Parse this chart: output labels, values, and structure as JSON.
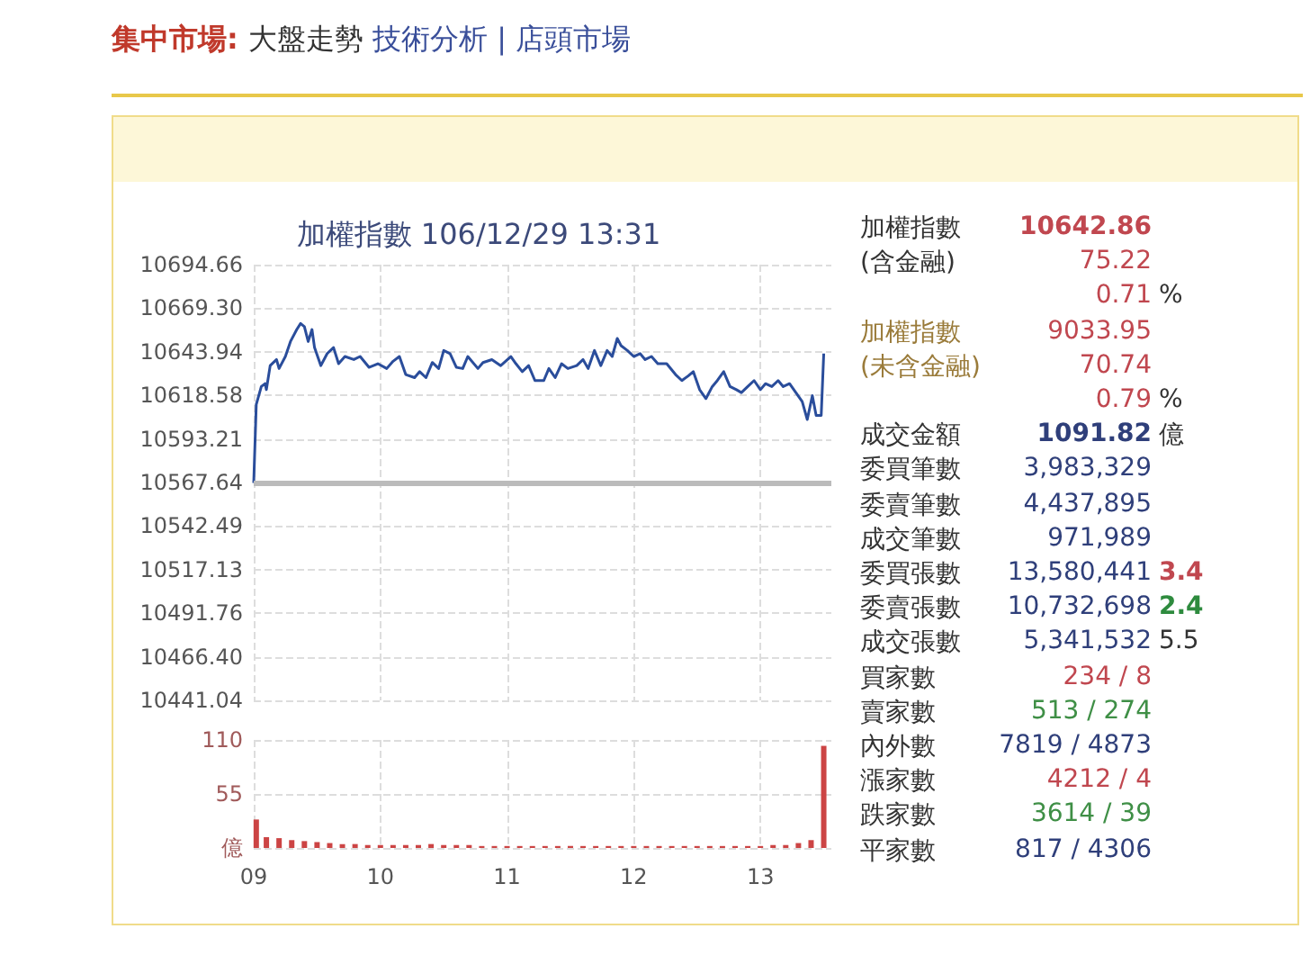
{
  "chart_data": [
    {
      "type": "line",
      "title": "加權指數 106/12/29 13:31",
      "x": [
        9.0,
        9.02,
        9.06,
        9.09,
        9.1,
        9.13,
        9.18,
        9.2,
        9.25,
        9.29,
        9.34,
        9.37,
        9.4,
        9.43,
        9.46,
        9.48,
        9.53,
        9.58,
        9.63,
        9.67,
        9.72,
        9.79,
        9.84,
        9.91,
        9.98,
        10.05,
        10.1,
        10.15,
        10.2,
        10.27,
        10.31,
        10.36,
        10.41,
        10.46,
        10.5,
        10.55,
        10.6,
        10.65,
        10.69,
        10.77,
        10.81,
        10.88,
        10.95,
        11.03,
        11.07,
        11.12,
        11.17,
        11.22,
        11.29,
        11.33,
        11.38,
        11.43,
        11.48,
        11.55,
        11.6,
        11.64,
        11.69,
        11.74,
        11.79,
        11.83,
        11.87,
        11.9,
        11.95,
        12.0,
        12.05,
        12.09,
        12.14,
        12.19,
        12.26,
        12.33,
        12.38,
        12.43,
        12.47,
        12.52,
        12.57,
        12.62,
        12.66,
        12.71,
        12.76,
        12.81,
        12.85,
        12.9,
        12.95,
        13.0,
        13.04,
        13.09,
        13.14,
        13.18,
        13.23,
        13.28,
        13.33,
        13.37,
        13.41,
        13.44,
        13.48,
        13.5
      ],
      "series": [
        {
          "color": "#2a4d9b",
          "values": [
            10567.6,
            10613.2,
            10623.7,
            10625.4,
            10621.9,
            10635.9,
            10639.4,
            10634.2,
            10641.2,
            10649.9,
            10656.9,
            10660.4,
            10658.6,
            10649.9,
            10656.9,
            10646.4,
            10635.9,
            10642.9,
            10646.4,
            10637.0,
            10641.2,
            10639.4,
            10641.2,
            10634.9,
            10637.0,
            10634.2,
            10638.4,
            10641.2,
            10630.7,
            10628.9,
            10632.4,
            10628.9,
            10637.7,
            10634.2,
            10644.7,
            10642.9,
            10634.9,
            10634.2,
            10641.2,
            10634.2,
            10637.7,
            10639.4,
            10635.9,
            10641.2,
            10637.0,
            10632.4,
            10635.9,
            10627.2,
            10627.2,
            10634.2,
            10628.9,
            10637.0,
            10634.2,
            10635.9,
            10639.4,
            10634.2,
            10644.7,
            10635.9,
            10644.7,
            10641.2,
            10651.7,
            10647.5,
            10644.7,
            10641.2,
            10642.9,
            10639.4,
            10641.2,
            10637.0,
            10637.0,
            10630.7,
            10627.2,
            10629.9,
            10632.4,
            10621.9,
            10616.7,
            10623.7,
            10627.2,
            10632.4,
            10623.7,
            10621.9,
            10620.2,
            10623.7,
            10627.2,
            10621.9,
            10625.4,
            10623.7,
            10627.2,
            10623.7,
            10625.4,
            10620.2,
            10614.9,
            10604.5,
            10618.4,
            10606.9,
            10606.9,
            10642.9
          ]
        }
      ],
      "xlim": [
        9,
        13.56
      ],
      "xticks": [
        9,
        10,
        11,
        12,
        13
      ],
      "ylim": [
        10441.04,
        10694.66
      ],
      "yticks": [
        10441.04,
        {
          "value": 10466.4,
          "label": "10466.40"
        },
        10491.76,
        10517.13,
        10542.49,
        10567.64,
        10593.21,
        10618.58,
        10643.94,
        {
          "value": 10669.3,
          "label": "10669.30"
        },
        10694.66
      ],
      "ref_lines": [
        {
          "axis": "y",
          "value": 10567.64,
          "color": "#bbbbbb"
        }
      ],
      "grid": true,
      "marker": "none",
      "line_style": "solid",
      "tick_labels": "y"
    },
    {
      "type": "bar",
      "x": [
        9.02,
        9.1,
        9.2,
        9.3,
        9.4,
        9.5,
        9.6,
        9.7,
        9.8,
        9.9,
        10.0,
        10.1,
        10.2,
        10.3,
        10.4,
        10.5,
        10.6,
        10.7,
        10.8,
        10.9,
        11.0,
        11.1,
        11.2,
        11.3,
        11.4,
        11.5,
        11.6,
        11.7,
        11.8,
        11.9,
        12.0,
        12.1,
        12.2,
        12.3,
        12.4,
        12.5,
        12.6,
        12.7,
        12.8,
        12.9,
        13.0,
        13.1,
        13.2,
        13.3,
        13.4,
        13.5
      ],
      "series": [
        {
          "color": "#cc4444",
          "values": [
            29,
            11,
            10,
            8,
            7,
            6,
            5,
            4,
            4,
            3,
            3,
            3,
            3,
            3,
            4,
            3,
            3,
            3,
            2,
            2,
            2,
            2,
            2,
            2,
            2,
            2,
            2,
            2,
            2,
            2,
            2,
            2,
            2,
            2,
            2,
            2,
            2,
            2,
            2,
            2,
            2,
            3,
            3,
            5,
            8,
            104
          ]
        }
      ],
      "xlim": [
        9,
        13.56
      ],
      "xticks": [
        {
          "value": 9,
          "label": "09"
        },
        10,
        11,
        12,
        13
      ],
      "ylim": [
        0,
        110
      ],
      "yticks": [
        {
          "value": 0,
          "label": "億"
        },
        55,
        110
      ],
      "grid": true
    },
    {
      "type": "other",
      "title": "集中市場: 大盤走勢 技術分析 | 店頭市場",
      "annotations": [
        "加權指數 10642.86",
        "(含金融) 75.22",
        "0.71 %",
        "加權指數 9033.95",
        "(未含金融) 70.74",
        "0.79 %",
        "成交金額 1091.82 億",
        "委買筆數 3,983,329",
        "委賣筆數 4,437,895",
        "成交筆數 971,989",
        "委買張數 13,580,441 3.4",
        "委賣張數 10,732,698 2.4",
        "成交張數 5,341,532 5.5",
        "買家數 234 / 8",
        "賣家數 513 / 274",
        "內外數 7819 / 4873",
        "漲家數 4212 / 4",
        "跌家數 3614 / 39",
        "平家數 817 / 4306"
      ]
    }
  ]
}
